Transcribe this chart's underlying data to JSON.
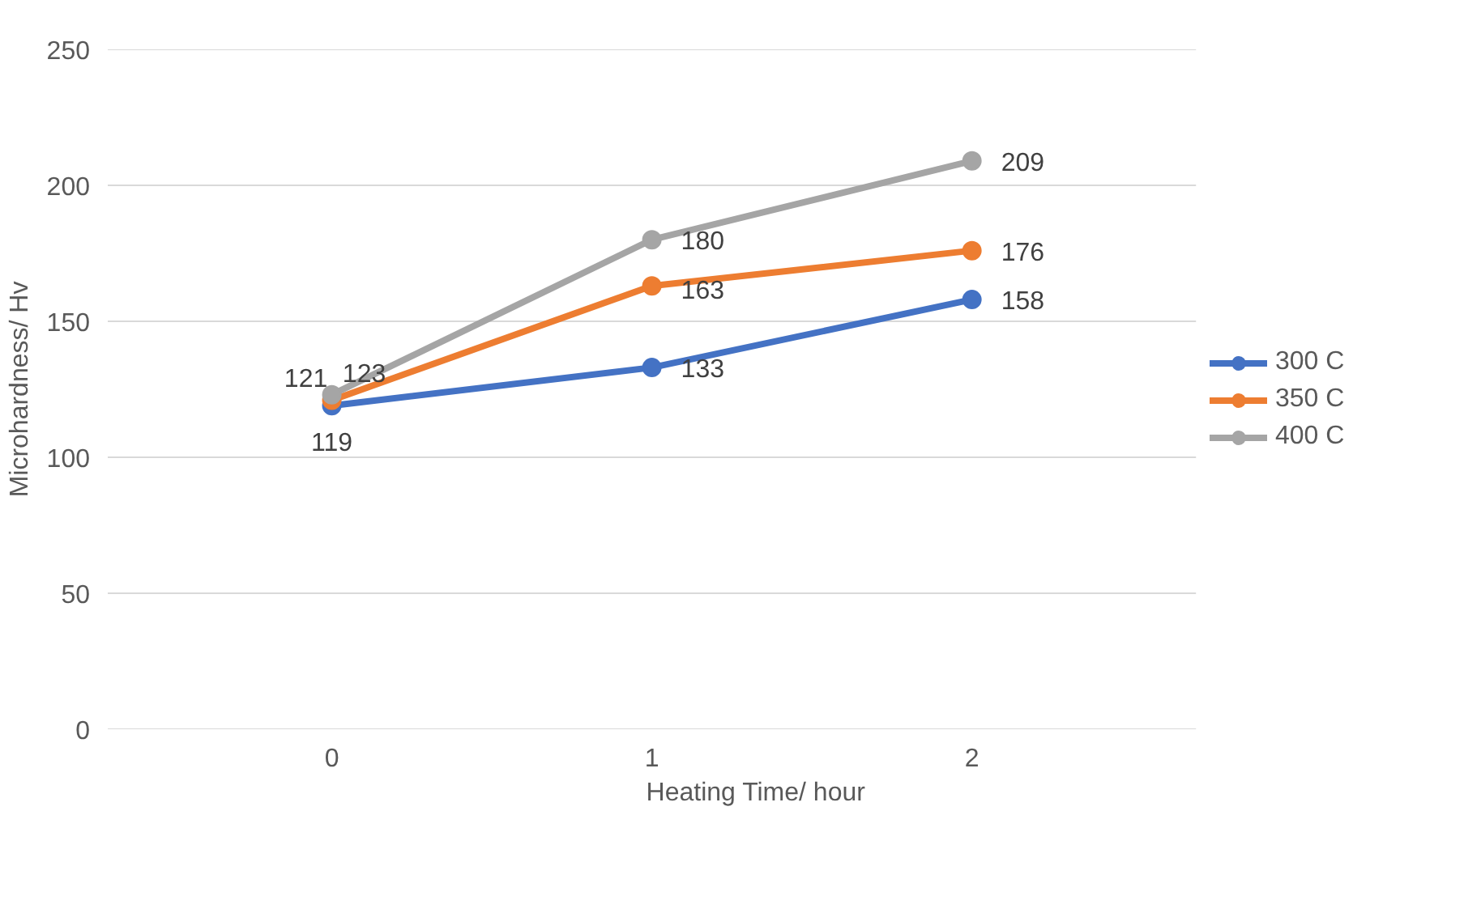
{
  "chart_data": {
    "type": "line",
    "xlabel": "Heating Time/ hour",
    "ylabel": "Microhardness/ Hv",
    "categories": [
      "0",
      "1",
      "2"
    ],
    "series": [
      {
        "name": "300 C",
        "color": "#4472c4",
        "values": [
          119,
          133,
          158
        ]
      },
      {
        "name": "350 C",
        "color": "#ed7d31",
        "values": [
          121,
          163,
          176
        ]
      },
      {
        "name": "400 C",
        "color": "#a5a5a5",
        "values": [
          123,
          180,
          209
        ]
      }
    ],
    "ylim": [
      0,
      250
    ],
    "yticks": [
      0,
      50,
      100,
      150,
      200,
      250
    ],
    "grid": "y",
    "legend": "right",
    "marker": "circle",
    "line_style": "solid",
    "data_labels": true
  }
}
